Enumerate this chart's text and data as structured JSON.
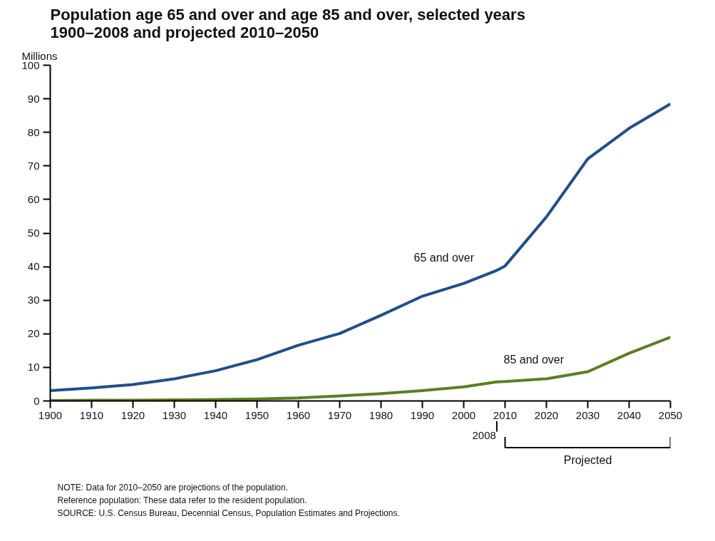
{
  "chart_data": {
    "type": "line",
    "title": "Population age 65 and over and age 85 and over, selected years\n1900–2008 and projected 2010–2050",
    "ylabel": "Millions",
    "x": [
      1900,
      1910,
      1920,
      1930,
      1940,
      1950,
      1960,
      1970,
      1980,
      1990,
      2000,
      2008,
      2010,
      2020,
      2030,
      2040,
      2050
    ],
    "series": [
      {
        "name": "65 and over",
        "color": "#1f4e8c",
        "values": [
          3.1,
          3.9,
          4.9,
          6.6,
          9.0,
          12.3,
          16.6,
          20.1,
          25.5,
          31.2,
          35.0,
          38.9,
          40.2,
          54.8,
          72.1,
          81.2,
          88.5
        ]
      },
      {
        "name": "85 and over",
        "color": "#5a7f1e",
        "values": [
          0.1,
          0.2,
          0.2,
          0.3,
          0.4,
          0.6,
          0.9,
          1.5,
          2.2,
          3.1,
          4.2,
          5.7,
          5.8,
          6.6,
          8.7,
          14.2,
          19.0
        ]
      }
    ],
    "xlim": [
      1900,
      2050
    ],
    "xticks": [
      1900,
      1910,
      1920,
      1930,
      1940,
      1950,
      1960,
      1970,
      1980,
      1990,
      2000,
      2010,
      2020,
      2030,
      2040,
      2050
    ],
    "ylim": [
      0,
      100
    ],
    "yticks": [
      0,
      10,
      20,
      30,
      40,
      50,
      60,
      70,
      80,
      90,
      100
    ],
    "grid": false,
    "legend": false,
    "marker": "none",
    "line_style": "solid",
    "ref_lines": [
      {
        "axis": "x",
        "value": 2008,
        "label": "2008"
      }
    ],
    "annotations": [
      "Projected",
      "NOTE: Data for 2010–2050 are projections of the population.",
      "Reference population: These data refer to the resident population.",
      "SOURCE: U.S. Census Bureau, Decennial Census, Population Estimates and Projections."
    ]
  }
}
